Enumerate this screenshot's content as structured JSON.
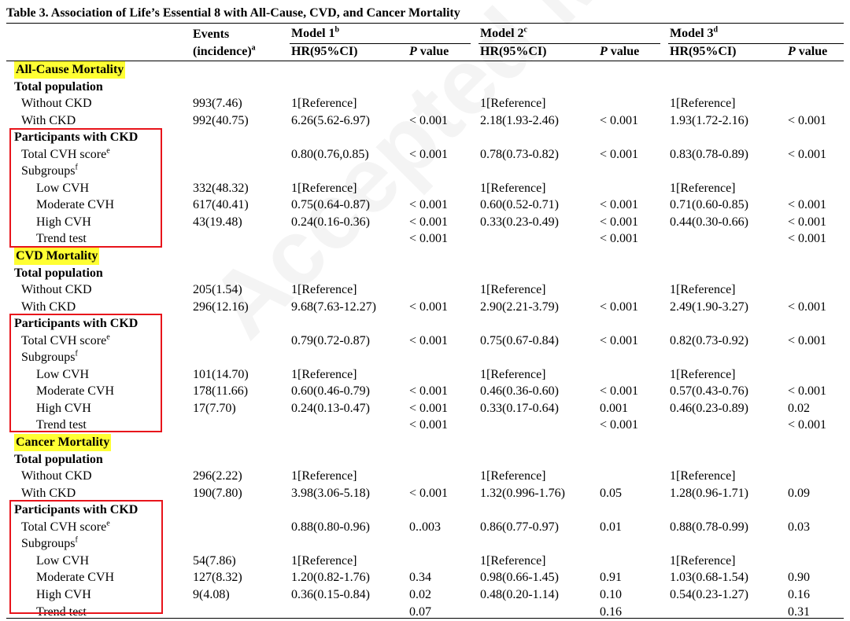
{
  "title": "Table 3. Association of Life’s Essential 8 with All-Cause, CVD, and Cancer Mortality",
  "watermark": "Accepted Manuscript",
  "header": {
    "events_line1": "Events",
    "events_line2": "(incidence)",
    "events_sup": "a",
    "model1": "Model 1",
    "model1_sup": "b",
    "model2": "Model 2",
    "model2_sup": "c",
    "model3": "Model 3",
    "model3_sup": "d",
    "hr": "HR(95%CI)",
    "p_italic": "P",
    "p_rest": " value"
  },
  "colors": {
    "highlight": "#ffff33",
    "box": "#e8141b"
  },
  "rows": [
    {
      "type": "section",
      "label": "All-Cause Mortality",
      "cells": [
        "",
        "",
        "",
        "",
        "",
        "",
        ""
      ]
    },
    {
      "type": "group",
      "label": "Total population",
      "cells": [
        "",
        "",
        "",
        "",
        "",
        "",
        ""
      ]
    },
    {
      "type": "sub",
      "label": "Without CKD",
      "cells": [
        "993(7.46)",
        "1[Reference]",
        "",
        "1[Reference]",
        "",
        "1[Reference]",
        ""
      ]
    },
    {
      "type": "sub",
      "label": "With CKD",
      "cells": [
        "992(40.75)",
        "6.26(5.62-6.97)",
        "< 0.001",
        "2.18(1.93-2.46)",
        "< 0.001",
        "1.93(1.72-2.16)",
        "< 0.001"
      ]
    },
    {
      "type": "group",
      "label": "Participants with CKD",
      "cells": [
        "",
        "",
        "",
        "",
        "",
        "",
        ""
      ]
    },
    {
      "type": "sub",
      "label": "Total CVH score",
      "sup": "e",
      "cells": [
        "",
        "0.80(0.76,0.85)",
        "< 0.001",
        "0.78(0.73-0.82)",
        "< 0.001",
        "0.83(0.78-0.89)",
        "< 0.001"
      ]
    },
    {
      "type": "sub",
      "label": "Subgroups",
      "sup": "f",
      "cells": [
        "",
        "",
        "",
        "",
        "",
        "",
        ""
      ]
    },
    {
      "type": "subsub",
      "label": "Low CVH",
      "cells": [
        "332(48.32)",
        "1[Reference]",
        "",
        "1[Reference]",
        "",
        "1[Reference]",
        ""
      ]
    },
    {
      "type": "subsub",
      "label": "Moderate CVH",
      "cells": [
        "617(40.41)",
        "0.75(0.64-0.87)",
        "< 0.001",
        "0.60(0.52-0.71)",
        "< 0.001",
        "0.71(0.60-0.85)",
        "< 0.001"
      ]
    },
    {
      "type": "subsub",
      "label": "High CVH",
      "cells": [
        "43(19.48)",
        "0.24(0.16-0.36)",
        "< 0.001",
        "0.33(0.23-0.49)",
        "< 0.001",
        "0.44(0.30-0.66)",
        "< 0.001"
      ]
    },
    {
      "type": "subsub",
      "label": "Trend test",
      "cells": [
        "",
        "",
        "< 0.001",
        "",
        "< 0.001",
        "",
        "< 0.001"
      ]
    },
    {
      "type": "section",
      "label": "CVD Mortality",
      "cells": [
        "",
        "",
        "",
        "",
        "",
        "",
        ""
      ]
    },
    {
      "type": "group",
      "label": "Total population",
      "cells": [
        "",
        "",
        "",
        "",
        "",
        "",
        ""
      ]
    },
    {
      "type": "sub",
      "label": "Without CKD",
      "cells": [
        "205(1.54)",
        "1[Reference]",
        "",
        "1[Reference]",
        "",
        "1[Reference]",
        ""
      ]
    },
    {
      "type": "sub",
      "label": "With CKD",
      "cells": [
        "296(12.16)",
        "9.68(7.63-12.27)",
        "< 0.001",
        "2.90(2.21-3.79)",
        "< 0.001",
        "2.49(1.90-3.27)",
        "< 0.001"
      ]
    },
    {
      "type": "group",
      "label": "Participants with CKD",
      "cells": [
        "",
        "",
        "",
        "",
        "",
        "",
        ""
      ]
    },
    {
      "type": "sub",
      "label": "Total CVH score",
      "sup": "e",
      "cells": [
        "",
        "0.79(0.72-0.87)",
        "< 0.001",
        "0.75(0.67-0.84)",
        "< 0.001",
        "0.82(0.73-0.92)",
        "< 0.001"
      ]
    },
    {
      "type": "sub",
      "label": "Subgroups",
      "sup": "f",
      "cells": [
        "",
        "",
        "",
        "",
        "",
        "",
        ""
      ]
    },
    {
      "type": "subsub",
      "label": "Low CVH",
      "cells": [
        "101(14.70)",
        "1[Reference]",
        "",
        "1[Reference]",
        "",
        "1[Reference]",
        ""
      ]
    },
    {
      "type": "subsub",
      "label": "Moderate CVH",
      "cells": [
        "178(11.66)",
        "0.60(0.46-0.79)",
        "< 0.001",
        "0.46(0.36-0.60)",
        "< 0.001",
        "0.57(0.43-0.76)",
        "< 0.001"
      ]
    },
    {
      "type": "subsub",
      "label": "High CVH",
      "cells": [
        "17(7.70)",
        "0.24(0.13-0.47)",
        "< 0.001",
        "0.33(0.17-0.64)",
        "0.001",
        "0.46(0.23-0.89)",
        "0.02"
      ]
    },
    {
      "type": "subsub",
      "label": "Trend test",
      "cells": [
        "",
        "",
        "< 0.001",
        "",
        "< 0.001",
        "",
        "< 0.001"
      ]
    },
    {
      "type": "section",
      "label": "Cancer Mortality",
      "cells": [
        "",
        "",
        "",
        "",
        "",
        "",
        ""
      ]
    },
    {
      "type": "group",
      "label": "Total population",
      "cells": [
        "",
        "",
        "",
        "",
        "",
        "",
        ""
      ]
    },
    {
      "type": "sub",
      "label": "Without CKD",
      "cells": [
        "296(2.22)",
        "1[Reference]",
        "",
        "1[Reference]",
        "",
        "1[Reference]",
        ""
      ]
    },
    {
      "type": "sub",
      "label": "With CKD",
      "cells": [
        "190(7.80)",
        "3.98(3.06-5.18)",
        "< 0.001",
        "1.32(0.996-1.76)",
        "0.05",
        "1.28(0.96-1.71)",
        "0.09"
      ]
    },
    {
      "type": "group",
      "label": "Participants with CKD",
      "cells": [
        "",
        "",
        "",
        "",
        "",
        "",
        ""
      ]
    },
    {
      "type": "sub",
      "label": "Total CVH score",
      "sup": "e",
      "cells": [
        "",
        "0.88(0.80-0.96)",
        "0..003",
        "0.86(0.77-0.97)",
        "0.01",
        "0.88(0.78-0.99)",
        "0.03"
      ]
    },
    {
      "type": "sub",
      "label": "Subgroups",
      "sup": "f",
      "cells": [
        "",
        "",
        "",
        "",
        "",
        "",
        ""
      ]
    },
    {
      "type": "subsub",
      "label": "Low CVH",
      "cells": [
        "54(7.86)",
        "1[Reference]",
        "",
        "1[Reference]",
        "",
        "1[Reference]",
        ""
      ]
    },
    {
      "type": "subsub",
      "label": "Moderate CVH",
      "cells": [
        "127(8.32)",
        "1.20(0.82-1.76)",
        "0.34",
        "0.98(0.66-1.45)",
        "0.91",
        "1.03(0.68-1.54)",
        "0.90"
      ]
    },
    {
      "type": "subsub",
      "label": "High CVH",
      "cells": [
        "9(4.08)",
        "0.36(0.15-0.84)",
        "0.02",
        "0.48(0.20-1.14)",
        "0.10",
        "0.54(0.23-1.27)",
        "0.16"
      ]
    },
    {
      "type": "subsub",
      "label": "Trend test",
      "cells": [
        "",
        "",
        "0.07",
        "",
        "0.16",
        "",
        "0.31"
      ]
    }
  ]
}
